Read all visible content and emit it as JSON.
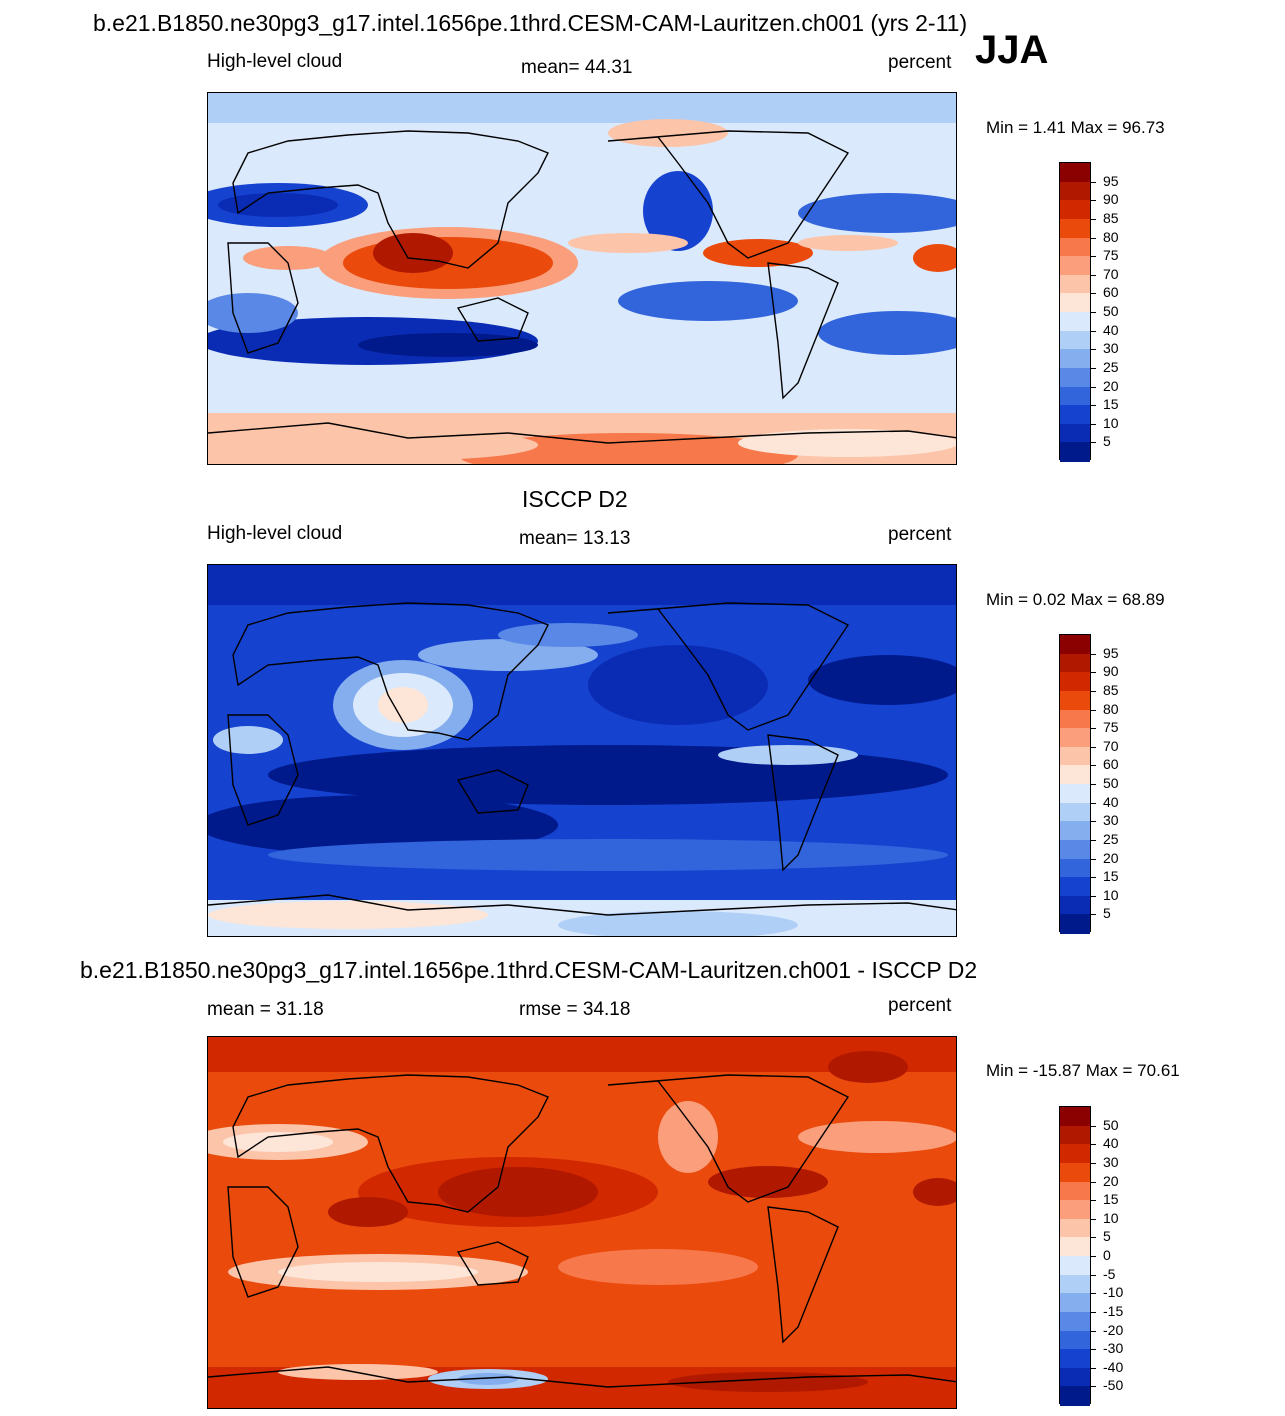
{
  "season": "JJA",
  "panels": [
    {
      "id": "model",
      "title": "b.e21.B1850.ne30pg3_g17.intel.1656pe.1thrd.CESM-CAM-Lauritzen.ch001 (yrs 2-11)",
      "left_label": "High-level cloud",
      "center_label": "mean=  44.31",
      "units": "percent",
      "minmax": "Min =    1.41 Max =  96.73"
    },
    {
      "id": "obs",
      "title": "ISCCP D2",
      "left_label": "High-level cloud",
      "center_label": "mean=  13.13",
      "units": "percent",
      "minmax": "Min =    0.02 Max =  68.89"
    },
    {
      "id": "diff",
      "title": "b.e21.B1850.ne30pg3_g17.intel.1656pe.1thrd.CESM-CAM-Lauritzen.ch001 - ISCCP D2",
      "left_label": "mean =  31.18",
      "center_label": "rmse =  34.18",
      "units": "percent",
      "minmax": "Min = -15.87 Max =  70.61"
    }
  ],
  "colorbars": {
    "abs": {
      "labels": [
        "95",
        "90",
        "85",
        "80",
        "75",
        "70",
        "60",
        "50",
        "40",
        "30",
        "25",
        "20",
        "15",
        "10",
        "5"
      ],
      "colors": [
        "#8b0000",
        "#b01800",
        "#d22800",
        "#ea4a0c",
        "#f7784a",
        "#fa9e7c",
        "#fcc4a8",
        "#fde6d8",
        "#dae9fb",
        "#b0cff6",
        "#84aeee",
        "#5a88e6",
        "#3264dc",
        "#1642d0",
        "#0a2cb4",
        "#001a8c"
      ]
    },
    "diff": {
      "labels": [
        "50",
        "40",
        "30",
        "20",
        "15",
        "10",
        "5",
        "0",
        "-5",
        "-10",
        "-15",
        "-20",
        "-30",
        "-40",
        "-50"
      ],
      "colors": [
        "#8b0000",
        "#b01800",
        "#d22800",
        "#ea4a0c",
        "#f7784a",
        "#fa9e7c",
        "#fcc4a8",
        "#fde6d8",
        "#dae9fb",
        "#b0cff6",
        "#84aeee",
        "#5a88e6",
        "#3264dc",
        "#1642d0",
        "#0a2cb4",
        "#001a8c"
      ]
    }
  }
}
